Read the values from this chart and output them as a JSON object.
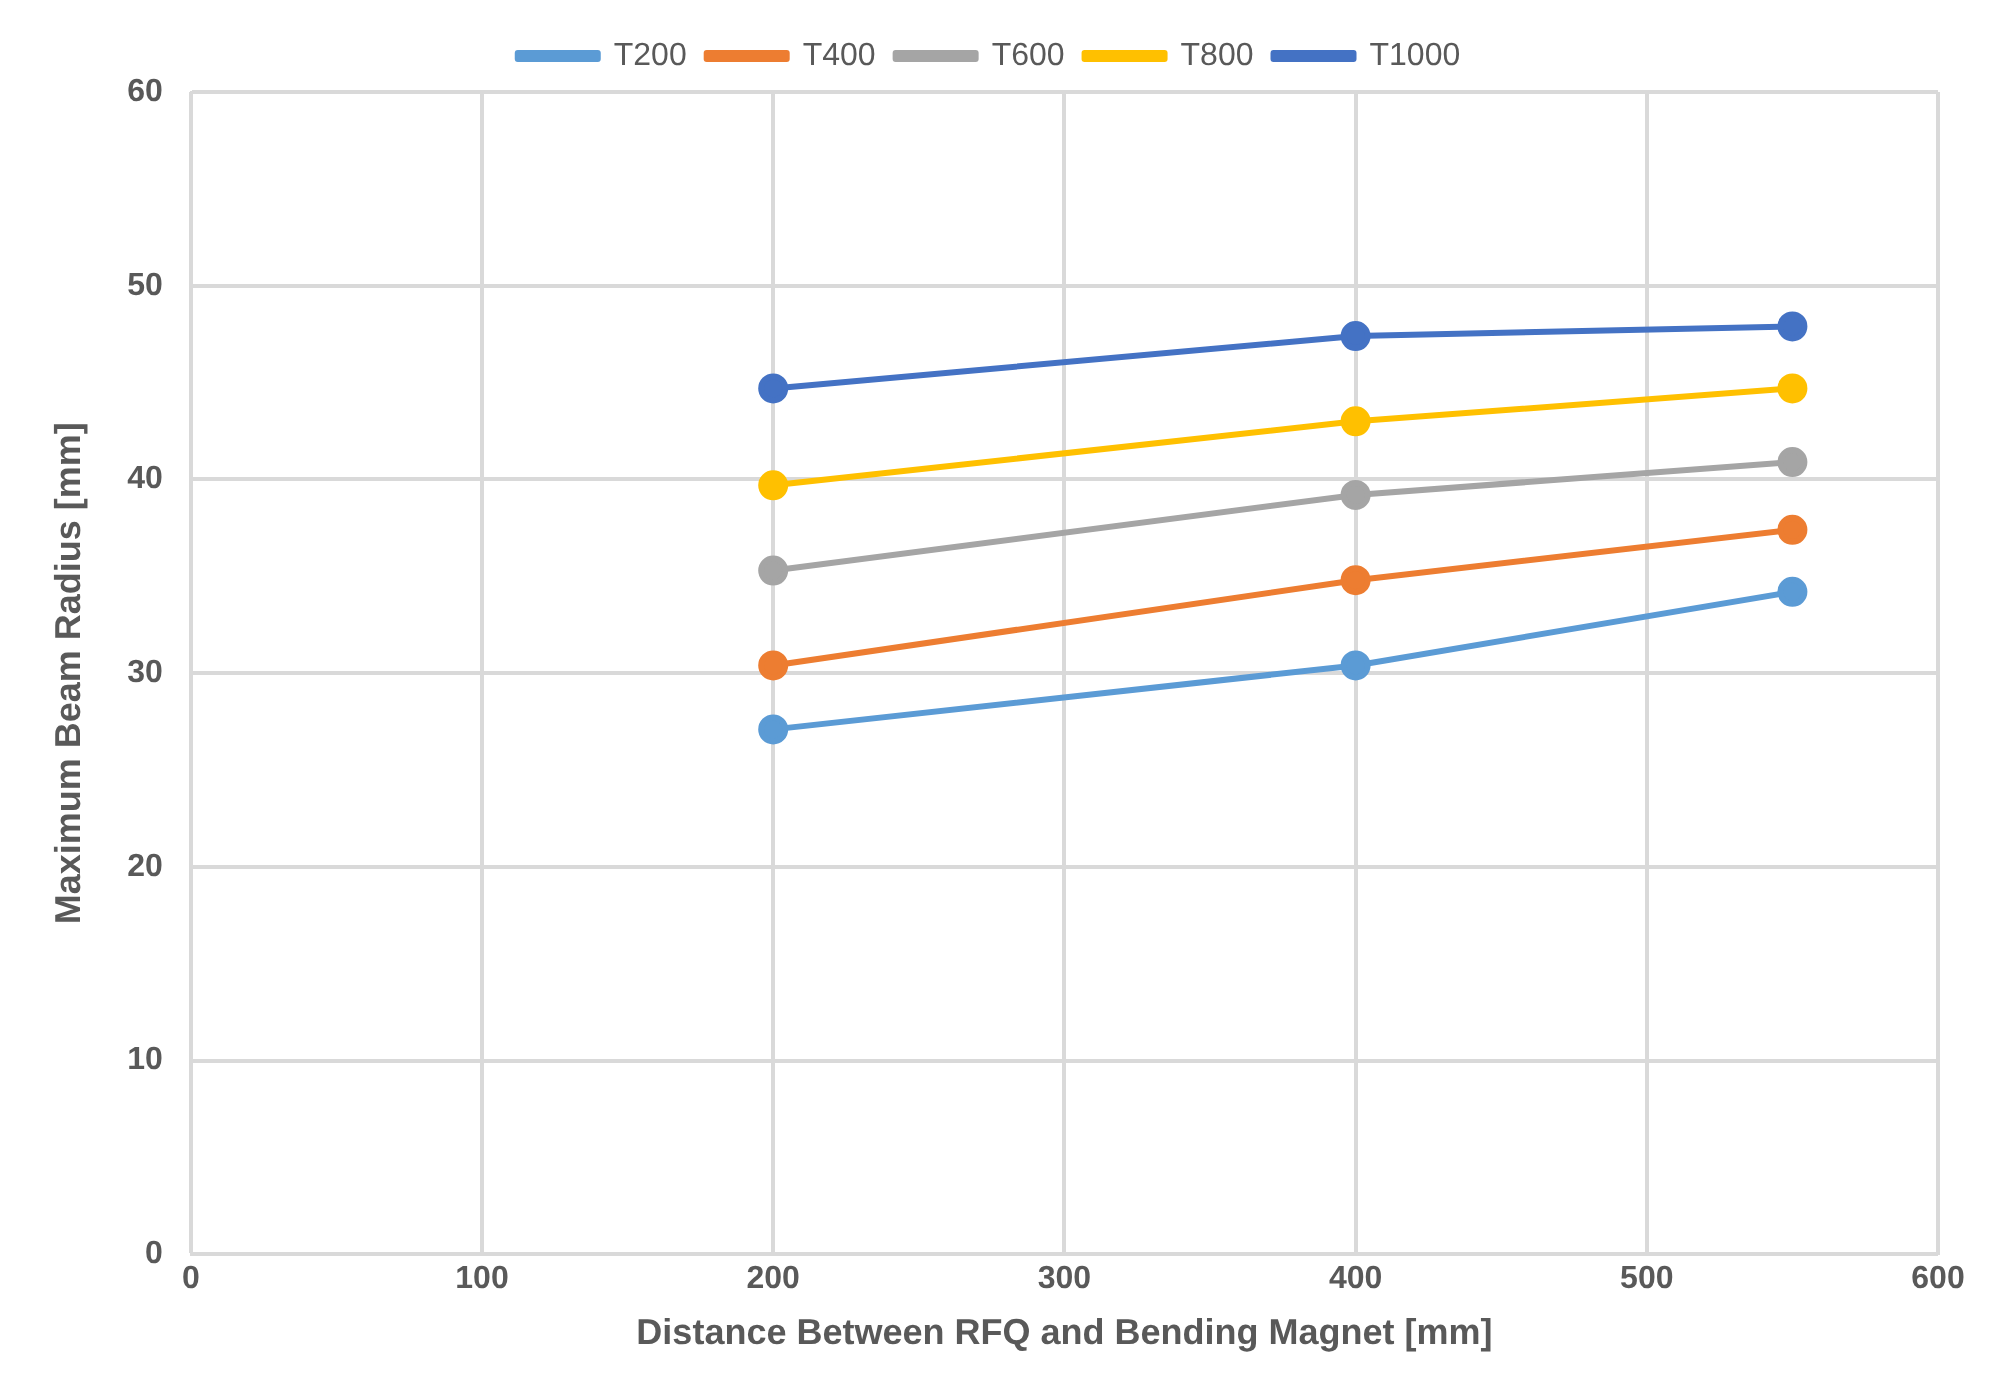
{
  "chart_data": {
    "type": "line",
    "xlabel": "Distance Between RFQ and Bending Magnet [mm]",
    "ylabel": "Maximum Beam Radius [mm]",
    "x": [
      200,
      400,
      550
    ],
    "series": [
      {
        "name": "T200",
        "color": "#5b9bd5",
        "values": [
          27.1,
          30.4,
          34.2
        ]
      },
      {
        "name": "T400",
        "color": "#ed7d31",
        "values": [
          30.4,
          34.8,
          37.4
        ]
      },
      {
        "name": "T600",
        "color": "#a5a5a5",
        "values": [
          35.3,
          39.2,
          40.9
        ]
      },
      {
        "name": "T800",
        "color": "#ffc000",
        "values": [
          39.7,
          43.0,
          44.7
        ]
      },
      {
        "name": "T1000",
        "color": "#4472c4",
        "values": [
          44.7,
          47.4,
          47.9
        ]
      }
    ],
    "xlim": [
      0,
      600
    ],
    "xticks": [
      0,
      100,
      200,
      300,
      400,
      500,
      600
    ],
    "ylim": [
      0,
      60
    ],
    "yticks": [
      0,
      10,
      20,
      30,
      40,
      50,
      60
    ],
    "grid": true,
    "legend": "top",
    "marker": "circle",
    "line_style": "solid"
  }
}
